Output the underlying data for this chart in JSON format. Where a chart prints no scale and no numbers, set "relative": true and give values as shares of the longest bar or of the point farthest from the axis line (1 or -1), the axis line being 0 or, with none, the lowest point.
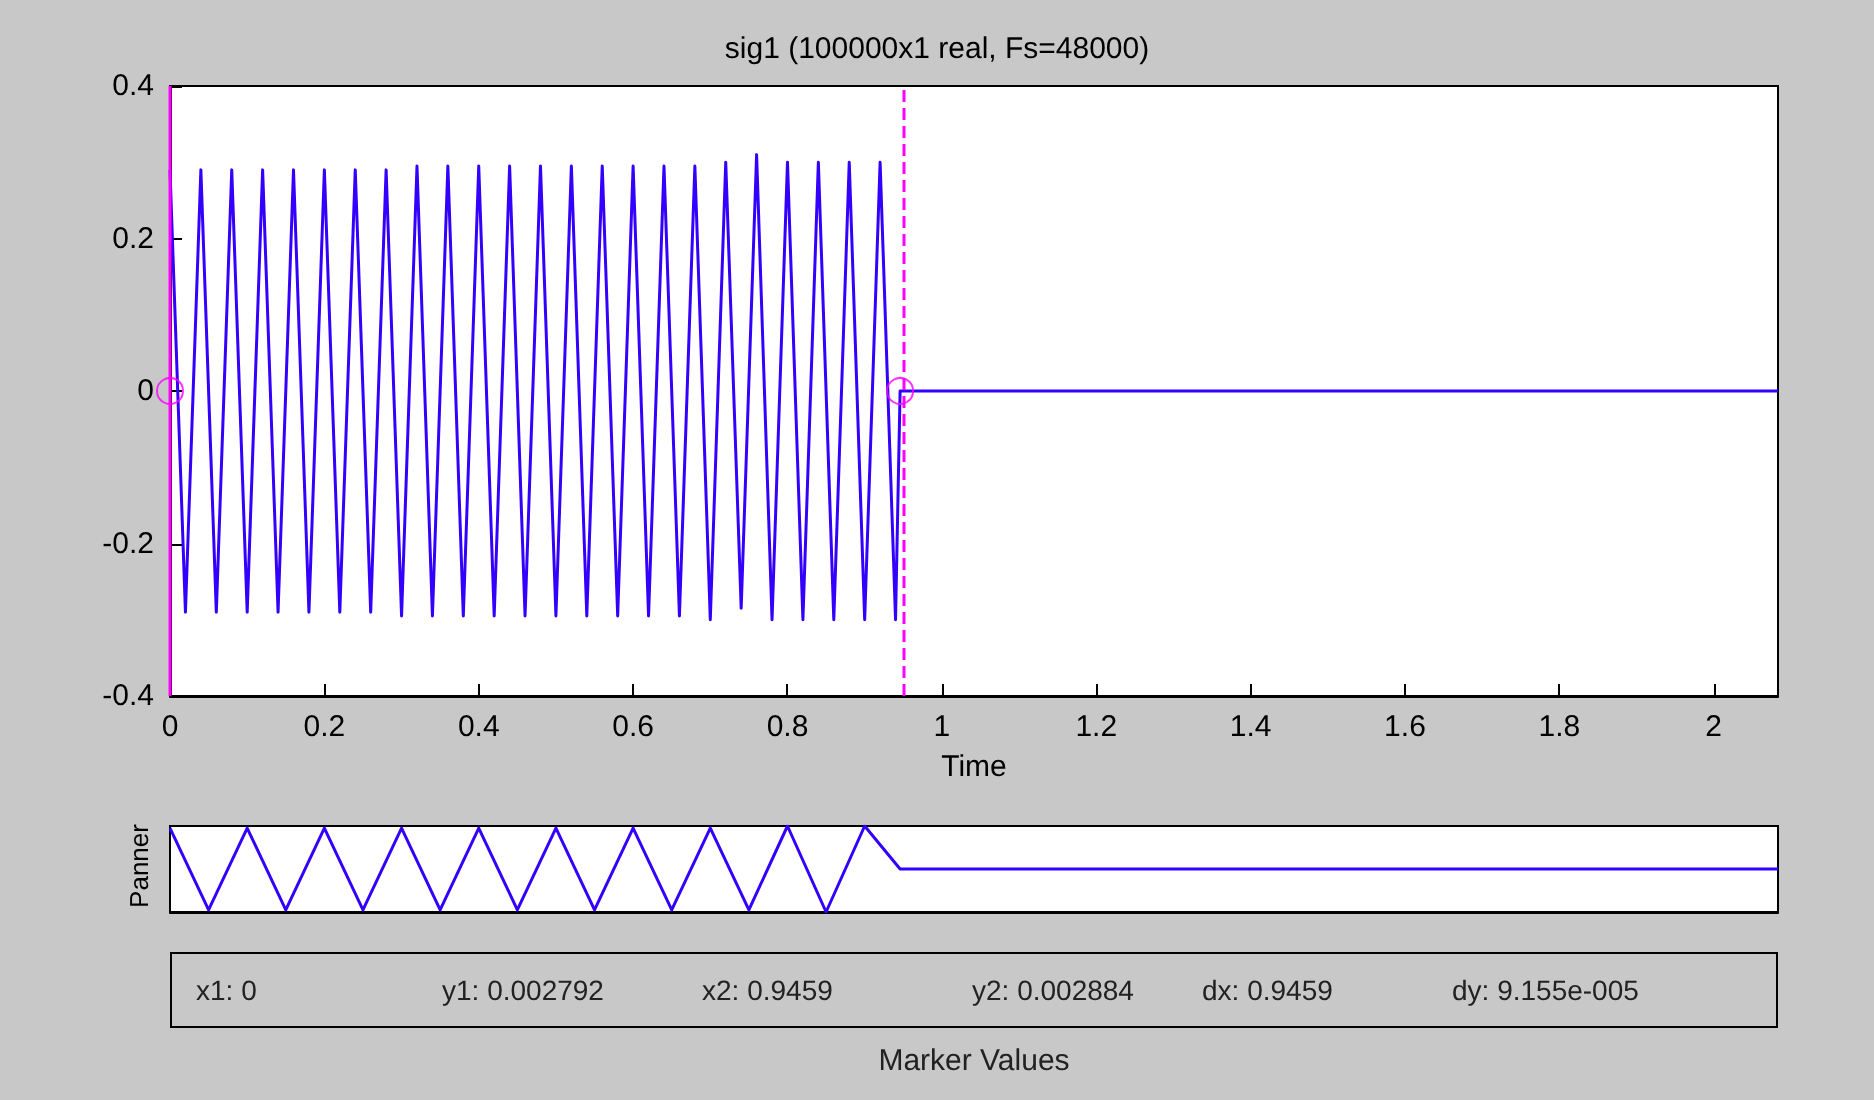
{
  "chart_data": [
    {
      "type": "line",
      "title": "sig1 (100000x1 real, Fs=48000)",
      "xlabel": "Time",
      "xlim": [
        0,
        2.0833
      ],
      "xticks": [
        0,
        0.2,
        0.4,
        0.6,
        0.8,
        1,
        1.2,
        1.4,
        1.6,
        1.8,
        2
      ],
      "ylim": [
        -0.4,
        0.4
      ],
      "yticks": [
        -0.4,
        -0.2,
        0,
        0.2,
        0.4
      ],
      "grid": false,
      "marker": "none",
      "line_style": "solid",
      "series": [
        {
          "color": "#3300ff",
          "x": [
            0,
            0.02,
            0.04,
            0.06,
            0.08,
            0.1,
            0.12,
            0.14,
            0.16,
            0.18,
            0.2,
            0.22,
            0.24,
            0.26,
            0.28,
            0.3,
            0.32,
            0.34,
            0.36,
            0.38,
            0.4,
            0.42,
            0.44,
            0.46,
            0.48,
            0.5,
            0.52,
            0.54,
            0.56,
            0.58,
            0.6,
            0.62,
            0.64,
            0.66,
            0.68,
            0.7,
            0.72,
            0.74,
            0.76,
            0.78,
            0.8,
            0.82,
            0.84,
            0.86,
            0.88,
            0.9,
            0.92,
            0.94,
            0.9459,
            1.5,
            2.0833
          ],
          "values": [
            0.29,
            -0.29,
            0.29,
            -0.29,
            0.29,
            -0.29,
            0.29,
            -0.29,
            0.29,
            -0.29,
            0.29,
            -0.29,
            0.29,
            -0.29,
            0.29,
            -0.295,
            0.295,
            -0.295,
            0.295,
            -0.295,
            0.295,
            -0.295,
            0.295,
            -0.295,
            0.295,
            -0.295,
            0.295,
            -0.295,
            0.295,
            -0.295,
            0.295,
            -0.295,
            0.295,
            -0.295,
            0.295,
            -0.3,
            0.3,
            -0.285,
            0.31,
            -0.3,
            0.3,
            -0.3,
            0.3,
            -0.3,
            0.3,
            -0.3,
            0.3,
            -0.3,
            0,
            0,
            0
          ]
        },
        {
          "type": "scatter",
          "marker": "circle",
          "color": "#ff00ff",
          "x": [
            0,
            0.9459
          ],
          "values": [
            0,
            0
          ]
        }
      ],
      "ref_lines": [
        {
          "axis": "x",
          "value": 0,
          "color": "#ff00ff",
          "line_style": "solid"
        },
        {
          "axis": "x",
          "value": 0.9459,
          "color": "#ff00ff",
          "line_style": "dashed"
        }
      ]
    },
    {
      "type": "line",
      "ylabel": "Panner",
      "relative": true,
      "xlim": [
        0,
        2.0833
      ],
      "tick_labels": false,
      "marker": "none",
      "series": [
        {
          "color": "#3300ff",
          "x": [
            0,
            0.05,
            0.1,
            0.15,
            0.2,
            0.25,
            0.3,
            0.35,
            0.4,
            0.45,
            0.5,
            0.55,
            0.6,
            0.65,
            0.7,
            0.75,
            0.8,
            0.85,
            0.9,
            0.9459,
            1.5,
            2.0833
          ],
          "values": [
            0.975,
            0.025,
            0.975,
            0.025,
            0.975,
            0.025,
            0.975,
            0.025,
            0.975,
            0.025,
            0.975,
            0.025,
            0.975,
            0.025,
            0.975,
            0.025,
            1,
            0,
            1,
            0.5,
            0.5,
            0.5
          ]
        }
      ]
    },
    {
      "type": "other",
      "xlabel": "Marker Values",
      "annotations": [
        "x1: 0",
        "y1: 0.002792",
        "x2: 0.9459",
        "y2: 0.002884",
        "dx: 0.9459",
        "dy: 9.155e-005"
      ]
    }
  ]
}
